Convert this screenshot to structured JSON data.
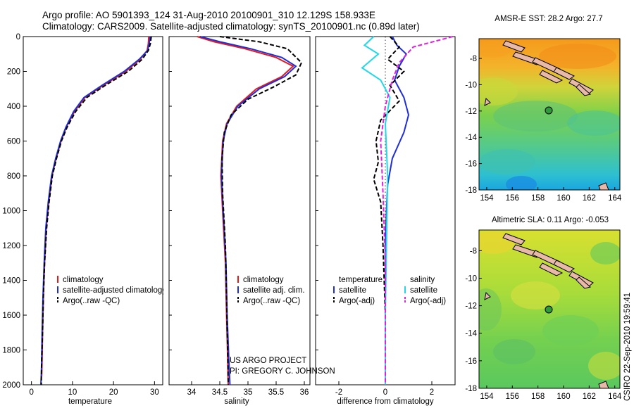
{
  "header": {
    "title_line1": "Argo profile: AO 5901393_124 31-Aug-2010 20100901_310 12.129S 158.933E",
    "title_line2": "Climatology: CARS2009. Satellite-adjusted climatology: synTS_20100901.nc (0.89d later)"
  },
  "credit": {
    "project": "US ARGO PROJECT",
    "pi": "PI: GREGORY C. JOHNSON",
    "side_label": "CSIRO 22-Sep-2010 19:59:41"
  },
  "colors": {
    "climatology": "#e41a1c",
    "satellite": "#1f2ed6",
    "argo": "#000000",
    "sat_salinity": "#22d8e8",
    "argo_salinity": "#e020e0",
    "land": "#e8b8a8"
  },
  "chart_data": [
    {
      "type": "line",
      "xlabel": "temperature",
      "ylim": [
        2000,
        0
      ],
      "xlim": [
        -2,
        32
      ],
      "xticks": [
        "0",
        "10",
        "20",
        "30"
      ],
      "yticks": [
        "0",
        "200",
        "400",
        "600",
        "800",
        "1000",
        "1200",
        "1400",
        "1600",
        "1800",
        "2000"
      ],
      "legend": [
        "climatology",
        "satellite-adjusted climatology",
        "Argo(..raw -QC)"
      ],
      "legend_position": "lower-left",
      "series": [
        {
          "name": "climatology",
          "color": "#e41a1c",
          "dash": false,
          "x": [
            28.6,
            28.5,
            28.2,
            26.5,
            23,
            17.5,
            13,
            10.5,
            8.5,
            7.2,
            6,
            5,
            4.2,
            3.6,
            3.2,
            2.9,
            2.7,
            2.6,
            2.5
          ],
          "y": [
            0,
            40,
            80,
            130,
            200,
            280,
            350,
            430,
            520,
            600,
            700,
            800,
            950,
            1100,
            1300,
            1500,
            1700,
            1850,
            1950
          ]
        },
        {
          "name": "satellite-adjusted climatology",
          "color": "#1f2ed6",
          "dash": false,
          "x": [
            28.9,
            28.7,
            28.3,
            26.3,
            22.6,
            17.2,
            12.8,
            10.3,
            8.4,
            7.1,
            5.9,
            4.9,
            4.1,
            3.5,
            3.1,
            2.8,
            2.6,
            2.5,
            2.4,
            2.3
          ],
          "y": [
            0,
            40,
            80,
            130,
            200,
            280,
            350,
            430,
            520,
            600,
            700,
            800,
            950,
            1100,
            1300,
            1500,
            1700,
            1850,
            1950,
            2000
          ]
        },
        {
          "name": "Argo(..raw -QC)",
          "color": "#000000",
          "dash": true,
          "x": [
            29.2,
            29.0,
            28.5,
            27,
            23.6,
            18,
            13.5,
            10.8,
            8.7,
            7.3,
            6.1,
            5.1,
            4.3,
            3.7,
            3.2,
            2.9,
            2.7,
            2.5,
            2.4
          ],
          "y": [
            0,
            40,
            80,
            130,
            200,
            280,
            350,
            430,
            520,
            600,
            700,
            800,
            950,
            1100,
            1300,
            1500,
            1700,
            1850,
            2000
          ]
        }
      ]
    },
    {
      "type": "line",
      "xlabel": "salinity",
      "ylim": [
        2000,
        0
      ],
      "xlim": [
        33.6,
        36.1
      ],
      "xticks": [
        "34",
        "34.5",
        "35",
        "35.5",
        "36"
      ],
      "legend": [
        "climatology",
        "satellite adj. clim.",
        "Argo(..raw -QC)"
      ],
      "legend_position": "lower-center",
      "series": [
        {
          "name": "climatology",
          "color": "#e41a1c",
          "dash": false,
          "x": [
            34.1,
            34.4,
            34.95,
            35.5,
            35.8,
            35.6,
            35.15,
            34.8,
            34.62,
            34.55,
            34.52,
            34.55,
            34.6,
            34.62,
            34.64,
            34.65
          ],
          "y": [
            0,
            30,
            70,
            120,
            170,
            230,
            300,
            400,
            500,
            600,
            800,
            1000,
            1300,
            1600,
            1850,
            2000
          ]
        },
        {
          "name": "satellite adj. clim.",
          "color": "#1f2ed6",
          "dash": false,
          "x": [
            34.15,
            34.5,
            35.05,
            35.6,
            35.85,
            35.65,
            35.2,
            34.82,
            34.63,
            34.56,
            34.53,
            34.56,
            34.61,
            34.63,
            34.66,
            34.68
          ],
          "y": [
            0,
            30,
            70,
            120,
            170,
            230,
            300,
            400,
            500,
            600,
            800,
            1000,
            1300,
            1600,
            1850,
            2000
          ]
        },
        {
          "name": "Argo(..raw -QC)",
          "color": "#000000",
          "dash": true,
          "x": [
            34.5,
            35.2,
            35.7,
            35.95,
            35.85,
            35.45,
            35.0,
            34.7,
            34.58,
            34.54,
            34.55,
            34.6,
            34.62,
            34.64,
            34.65
          ],
          "y": [
            0,
            30,
            70,
            150,
            220,
            290,
            360,
            450,
            550,
            700,
            900,
            1200,
            1500,
            1800,
            2000
          ]
        }
      ]
    },
    {
      "type": "line",
      "xlabel": "difference from climatology",
      "ylim": [
        2000,
        0
      ],
      "xlim": [
        -3,
        3
      ],
      "xticks": [
        "-2",
        "0",
        "2"
      ],
      "legend": [
        "temperature",
        "satellite",
        "Argo(-adj)",
        "salinity",
        "satellite",
        "Argo(-adj)"
      ],
      "legend_position": "lower-center",
      "series": [
        {
          "name": "temperature satellite",
          "color": "#1f2ed6",
          "dash": false,
          "x": [
            0.3,
            0.5,
            0.9,
            0.6,
            0.4,
            0.8,
            1.0,
            0.8,
            0.3,
            0.1,
            0.05,
            0.0,
            0.0,
            0.0,
            0.0
          ],
          "y": [
            0,
            50,
            100,
            170,
            250,
            350,
            450,
            550,
            700,
            850,
            1000,
            1200,
            1500,
            1800,
            2000
          ]
        },
        {
          "name": "temperature Argo(-adj)",
          "color": "#000000",
          "dash": true,
          "x": [
            0.2,
            0.6,
            0.1,
            0.8,
            0.2,
            0.6,
            -0.2,
            -0.4,
            -0.3,
            -0.5,
            -0.2,
            -0.1,
            0.0,
            0.0
          ],
          "y": [
            0,
            60,
            130,
            200,
            280,
            370,
            480,
            600,
            720,
            820,
            950,
            1200,
            1600,
            2000
          ]
        },
        {
          "name": "salinity satellite",
          "color": "#22d8e8",
          "dash": false,
          "x": [
            -0.5,
            -0.9,
            -0.3,
            -1.0,
            -0.2,
            0.2,
            0.0,
            0.1,
            0.05,
            0.0,
            0.0
          ],
          "y": [
            0,
            50,
            100,
            180,
            250,
            350,
            500,
            800,
            1200,
            1600,
            2000
          ]
        },
        {
          "name": "salinity Argo(-adj)",
          "color": "#e020e0",
          "dash": true,
          "x": [
            2.9,
            1.2,
            0.6,
            0.3,
            0.0,
            -0.2,
            -0.1,
            0.0,
            0.0
          ],
          "y": [
            0,
            60,
            150,
            250,
            400,
            600,
            900,
            1300,
            2000
          ]
        }
      ]
    },
    {
      "type": "heatmap",
      "title": "AMSR-E SST: 28.2 Argo: 27.7",
      "xticks": [
        "154",
        "156",
        "158",
        "160",
        "162",
        "164"
      ],
      "yticks": [
        "-8",
        "-10",
        "-12",
        "-14",
        "-16",
        "-18"
      ],
      "xlim": [
        153.4,
        164.4
      ],
      "ylim": [
        -18,
        -6.5
      ],
      "marker": {
        "lon": 158.933,
        "lat": -12.129
      }
    },
    {
      "type": "heatmap",
      "title": "Altimetric SLA: 0.11 Argo: -0.053",
      "xticks": [
        "154",
        "156",
        "158",
        "160",
        "162",
        "164"
      ],
      "yticks": [
        "-8",
        "-10",
        "-12",
        "-14",
        "-16",
        "-18"
      ],
      "xlim": [
        153.4,
        164.4
      ],
      "ylim": [
        -18,
        -6.5
      ],
      "marker": {
        "lon": 158.933,
        "lat": -12.129
      }
    }
  ]
}
